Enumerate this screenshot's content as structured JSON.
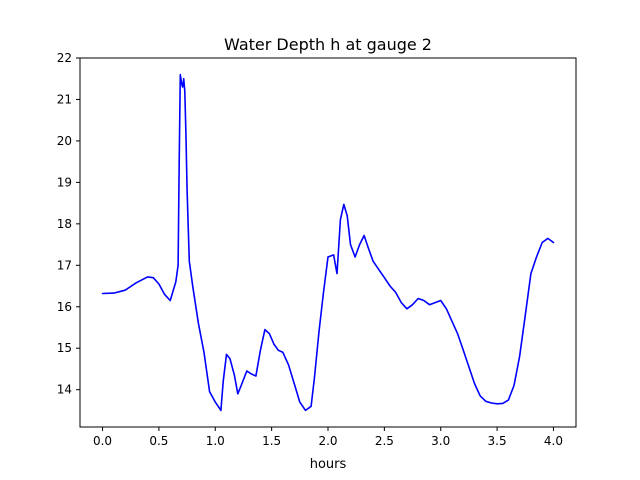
{
  "chart_data": {
    "type": "line",
    "title": "Water Depth h at gauge 2",
    "xlabel": "hours",
    "ylabel": "",
    "xlim": [
      -0.2,
      4.2
    ],
    "ylim": [
      13.1,
      22.0
    ],
    "xticks": [
      0.0,
      0.5,
      1.0,
      1.5,
      2.0,
      2.5,
      3.0,
      3.5,
      4.0
    ],
    "xtick_labels": [
      "0.0",
      "0.5",
      "1.0",
      "1.5",
      "2.0",
      "2.5",
      "3.0",
      "3.5",
      "4.0"
    ],
    "yticks": [
      14,
      15,
      16,
      17,
      18,
      19,
      20,
      21,
      22
    ],
    "ytick_labels": [
      "14",
      "15",
      "16",
      "17",
      "18",
      "19",
      "20",
      "21",
      "22"
    ],
    "grid": false,
    "series": [
      {
        "color": "#0000ff",
        "x": [
          0.0,
          0.1,
          0.2,
          0.3,
          0.4,
          0.45,
          0.5,
          0.55,
          0.6,
          0.65,
          0.67,
          0.68,
          0.69,
          0.7,
          0.71,
          0.72,
          0.73,
          0.74,
          0.75,
          0.77,
          0.8,
          0.85,
          0.9,
          0.95,
          1.0,
          1.05,
          1.07,
          1.1,
          1.13,
          1.17,
          1.2,
          1.23,
          1.28,
          1.32,
          1.36,
          1.4,
          1.44,
          1.48,
          1.52,
          1.56,
          1.6,
          1.65,
          1.7,
          1.75,
          1.8,
          1.85,
          1.88,
          1.92,
          1.96,
          2.0,
          2.05,
          2.08,
          2.11,
          2.14,
          2.17,
          2.2,
          2.24,
          2.28,
          2.32,
          2.36,
          2.4,
          2.45,
          2.5,
          2.55,
          2.6,
          2.65,
          2.7,
          2.75,
          2.8,
          2.85,
          2.9,
          2.95,
          3.0,
          3.05,
          3.1,
          3.15,
          3.2,
          3.25,
          3.3,
          3.35,
          3.4,
          3.45,
          3.5,
          3.55,
          3.6,
          3.65,
          3.7,
          3.75,
          3.8,
          3.85,
          3.9,
          3.95,
          4.0
        ],
        "y": [
          16.32,
          16.33,
          16.4,
          16.58,
          16.72,
          16.7,
          16.55,
          16.3,
          16.15,
          16.6,
          17.0,
          19.5,
          21.6,
          21.4,
          21.3,
          21.5,
          21.2,
          20.1,
          18.8,
          17.1,
          16.5,
          15.6,
          14.9,
          13.95,
          13.7,
          13.5,
          14.2,
          14.85,
          14.75,
          14.35,
          13.9,
          14.1,
          14.45,
          14.38,
          14.33,
          14.95,
          15.45,
          15.35,
          15.1,
          14.95,
          14.9,
          14.6,
          14.15,
          13.7,
          13.5,
          13.6,
          14.3,
          15.4,
          16.35,
          17.2,
          17.25,
          16.8,
          18.1,
          18.47,
          18.2,
          17.5,
          17.2,
          17.5,
          17.72,
          17.4,
          17.1,
          16.9,
          16.7,
          16.5,
          16.35,
          16.1,
          15.95,
          16.05,
          16.2,
          16.15,
          16.05,
          16.1,
          16.15,
          15.95,
          15.65,
          15.35,
          14.95,
          14.55,
          14.15,
          13.85,
          13.72,
          13.68,
          13.66,
          13.67,
          13.75,
          14.1,
          14.8,
          15.8,
          16.8,
          17.2,
          17.55,
          17.65,
          17.55
        ]
      }
    ]
  }
}
